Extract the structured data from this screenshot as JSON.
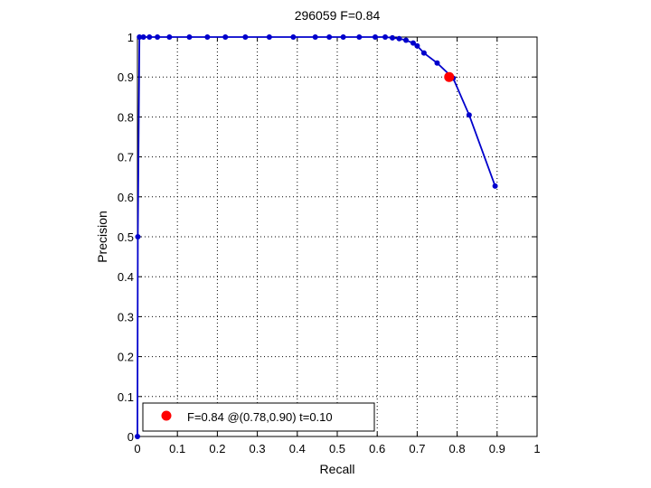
{
  "chart_data": {
    "type": "line",
    "title": "296059 F=0.84",
    "xlabel": "Recall",
    "ylabel": "Precision",
    "xlim": [
      0,
      1
    ],
    "ylim": [
      0,
      1
    ],
    "xticks": [
      "0",
      "0.1",
      "0.2",
      "0.3",
      "0.4",
      "0.5",
      "0.6",
      "0.7",
      "0.8",
      "0.9",
      "1"
    ],
    "yticks": [
      "0",
      "0.1",
      "0.2",
      "0.3",
      "0.4",
      "0.5",
      "0.6",
      "0.7",
      "0.8",
      "0.9",
      "1"
    ],
    "grid": true,
    "legend_position": "bottom-left",
    "series": [
      {
        "color": "#0000cc",
        "x": [
          0,
          0.001,
          0.005,
          0.015,
          0.03,
          0.05,
          0.08,
          0.13,
          0.175,
          0.22,
          0.27,
          0.33,
          0.39,
          0.445,
          0.48,
          0.515,
          0.555,
          0.595,
          0.62,
          0.638,
          0.655,
          0.672,
          0.69,
          0.7,
          0.717,
          0.75,
          0.79,
          0.83,
          0.895
        ],
        "y": [
          0,
          0.5,
          1,
          1,
          1,
          1,
          1,
          1,
          1,
          1,
          1,
          1,
          1,
          1,
          1,
          1,
          1,
          1,
          1,
          0.998,
          0.996,
          0.992,
          0.985,
          0.978,
          0.96,
          0.935,
          0.897,
          0.805,
          0.627
        ]
      }
    ],
    "highlight": {
      "color": "#ff0000",
      "x": 0.78,
      "y": 0.9
    },
    "legend": [
      "F=0.84 @(0.78,0.90) t=0.10"
    ]
  }
}
